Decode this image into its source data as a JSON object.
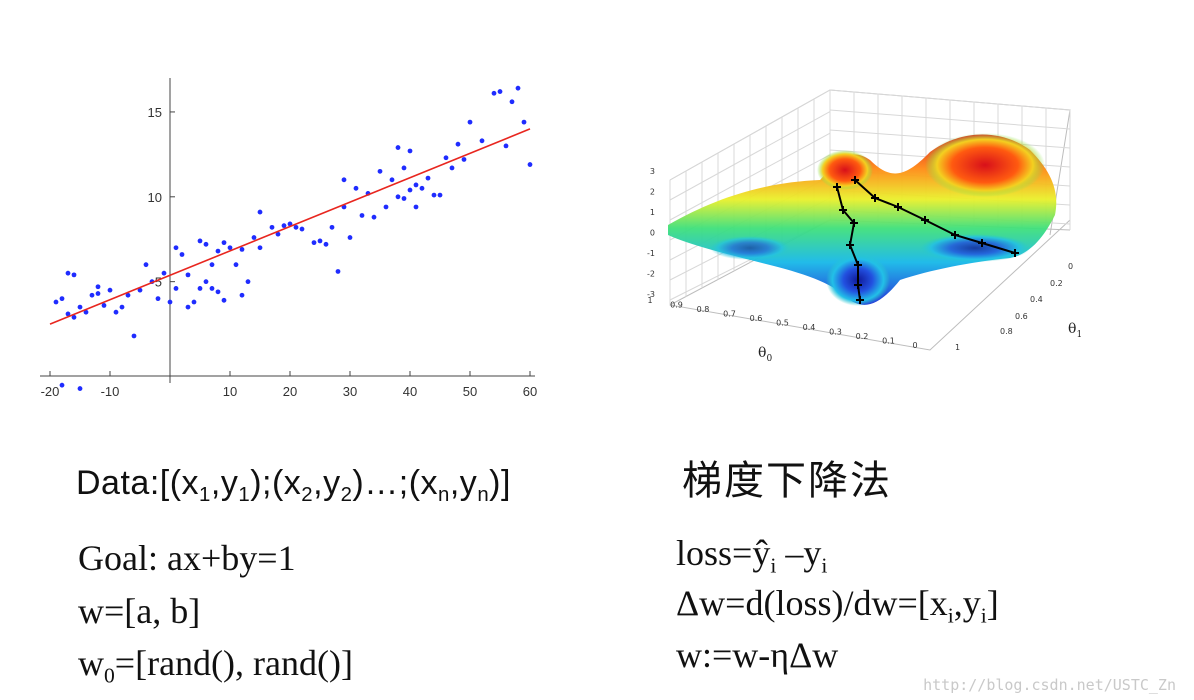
{
  "chart_data": [
    {
      "type": "scatter",
      "title": "",
      "xlabel": "",
      "ylabel": "",
      "xlim": [
        -20,
        60
      ],
      "ylim": [
        -0.5,
        17
      ],
      "xticks": [
        -20,
        -10,
        10,
        20,
        30,
        40,
        50,
        60
      ],
      "yticks": [
        5,
        10,
        15
      ],
      "fit_line": {
        "x": [
          -20,
          60
        ],
        "y": [
          2.5,
          14.0
        ]
      },
      "point_color": "#1f2cff",
      "line_color": "#e8261f",
      "series": [
        {
          "x": [
            -19,
            -18,
            -17,
            -17,
            -16,
            -16,
            -15,
            -14,
            -13,
            -12,
            -12,
            -11,
            -10,
            -9,
            -8,
            -7,
            -6,
            -5,
            -4,
            -3,
            -2,
            -1,
            0,
            1,
            1,
            2,
            3,
            3,
            4,
            5,
            5,
            6,
            6,
            7,
            7,
            8,
            8,
            9,
            9,
            10,
            11,
            12,
            12,
            13,
            14,
            15,
            15,
            17,
            18,
            19,
            20,
            21,
            22,
            24,
            25,
            26,
            27,
            28,
            29,
            29,
            30,
            31,
            32,
            33,
            34,
            35,
            36,
            37,
            38,
            38,
            39,
            39,
            40,
            40,
            41,
            41,
            42,
            43,
            44,
            45,
            46,
            47,
            48,
            49,
            50,
            52,
            54,
            55,
            56,
            57,
            58,
            59,
            60,
            -18,
            -15
          ],
          "y": [
            3.8,
            4.0,
            3.1,
            5.5,
            2.9,
            5.4,
            3.5,
            3.2,
            4.2,
            4.3,
            4.7,
            3.6,
            4.5,
            3.2,
            3.5,
            4.2,
            1.8,
            4.5,
            6.0,
            5.0,
            4.0,
            5.5,
            3.8,
            4.6,
            7.0,
            6.6,
            5.4,
            3.5,
            3.8,
            7.4,
            4.6,
            7.2,
            5.0,
            6.0,
            4.6,
            6.8,
            4.4,
            7.3,
            3.9,
            7.0,
            6.0,
            6.9,
            4.2,
            5.0,
            7.6,
            7.0,
            9.1,
            8.2,
            7.8,
            8.3,
            8.4,
            8.2,
            8.1,
            7.3,
            7.4,
            7.2,
            8.2,
            5.6,
            9.4,
            11.0,
            7.6,
            10.5,
            8.9,
            10.2,
            8.8,
            11.5,
            9.4,
            11.0,
            10.0,
            12.9,
            9.9,
            11.7,
            10.4,
            12.7,
            10.7,
            9.4,
            10.5,
            11.1,
            10.1,
            10.1,
            12.3,
            11.7,
            13.1,
            12.2,
            14.4,
            13.3,
            16.1,
            16.2,
            13.0,
            15.6,
            16.4,
            14.4,
            11.9,
            -1.1,
            -1.3
          ]
        }
      ]
    },
    {
      "type": "surface",
      "title": "",
      "xlabel": "θ0",
      "ylabel": "θ1",
      "zticks": [
        3,
        2,
        1,
        0,
        -1,
        -2,
        -3
      ],
      "theta0_ticks": [
        1,
        0.9,
        0.8,
        0.7,
        0.6,
        0.5,
        0.4,
        0.3,
        0.2,
        0.1,
        0
      ],
      "theta1_ticks": [
        0,
        0.2,
        0.4,
        0.6,
        0.8,
        1
      ],
      "path_color": "#000000"
    }
  ],
  "text": {
    "data_line": "Data:[(x1,y1);(x2,y2)…;(xn,yn)]",
    "heading_cn": "梯度下降法",
    "goal": "Goal: ax+by=1",
    "w_line": "w=[a, b]",
    "w0_line": "w0=[rand(), rand()]",
    "loss_line": "loss=ŷi –yi",
    "dw_line": "Δw=d(loss)/dw=[xi,yi]",
    "update_line": "w:=w-ηΔw",
    "watermark": "http://blog.csdn.net/USTC_Zn"
  }
}
